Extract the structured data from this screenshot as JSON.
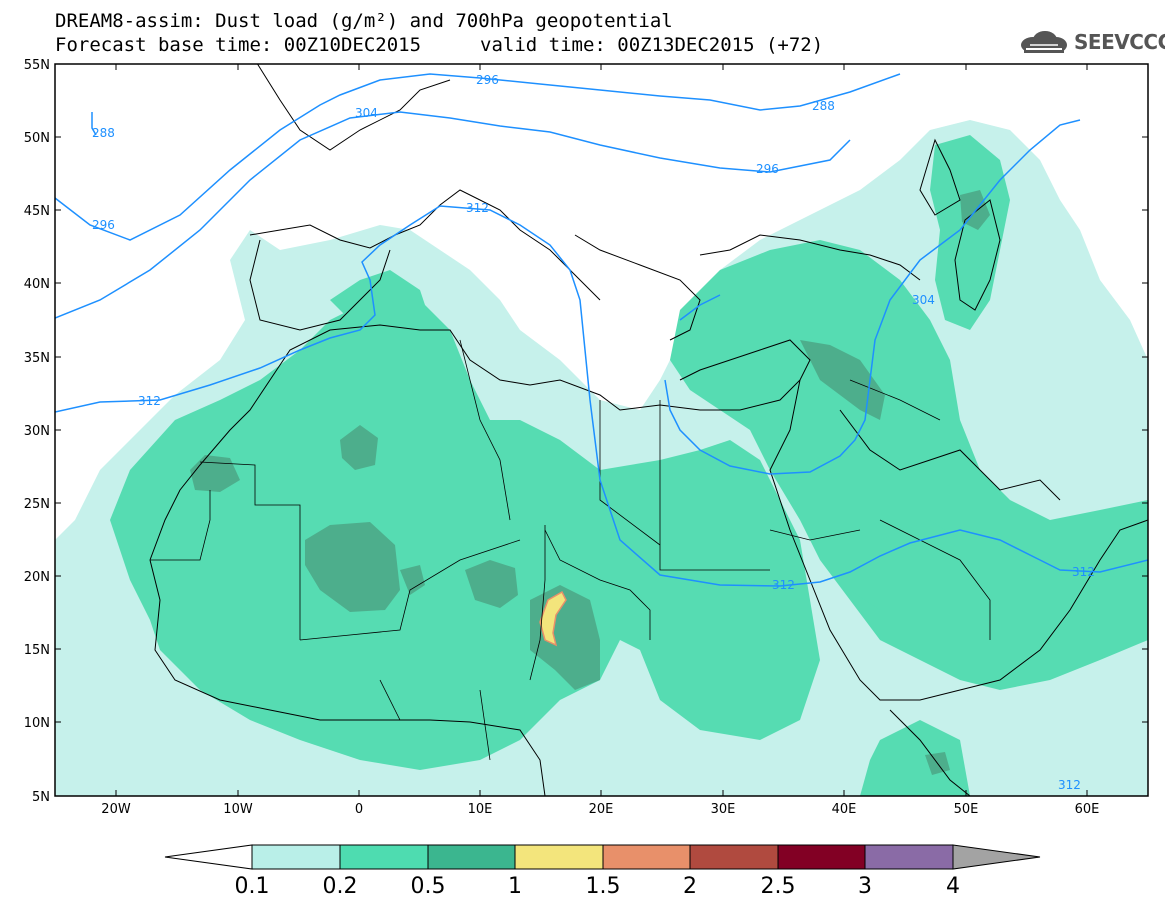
{
  "title_line1": "DREAM8-assim: Dust load (g/m²) and 700hPa geopotential",
  "title_line2_base": "Forecast base time: 00Z10DEC2015",
  "title_line2_valid": "valid time: 00Z13DEC2015 (+72)",
  "logo_text": "SEEVCCC",
  "logo_icon": "cloud-icon",
  "lat_labels": [
    "55N",
    "50N",
    "45N",
    "40N",
    "35N",
    "30N",
    "25N",
    "20N",
    "15N",
    "10N",
    "5N"
  ],
  "lon_labels": [
    "20W",
    "10W",
    "0",
    "10E",
    "20E",
    "30E",
    "40E",
    "50E",
    "60E"
  ],
  "contour_labels": [
    "288",
    "296",
    "304",
    "312",
    "296",
    "288",
    "296",
    "312",
    "304",
    "312",
    "312",
    "312"
  ],
  "colorbar": {
    "ticks": [
      "0.1",
      "0.2",
      "0.5",
      "1",
      "1.5",
      "2",
      "2.5",
      "3",
      "4"
    ],
    "colors": [
      "#ffffff",
      "#b9efe8",
      "#4edcb0",
      "#3bb68f",
      "#f3e57c",
      "#e8906a",
      "#b04a3f",
      "#820024",
      "#8a6ba6",
      "#a3a3a3"
    ]
  },
  "colors": {
    "contour": "#1e90ff",
    "dust_low": "#c6f1eb",
    "dust_mid": "#56dcb2",
    "dust_high": "#4dae8c",
    "dust_peak": "#f3e57c"
  }
}
